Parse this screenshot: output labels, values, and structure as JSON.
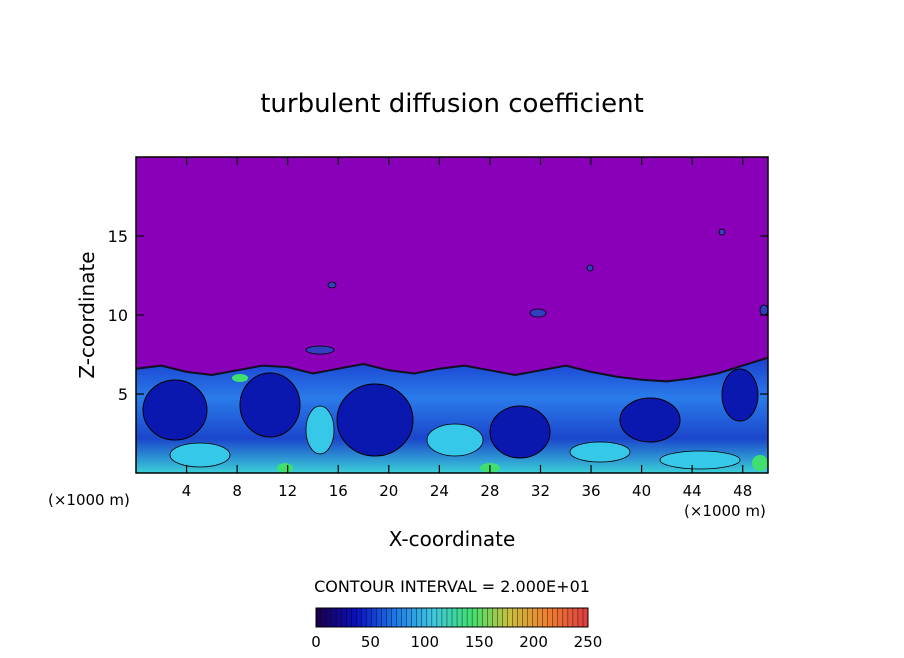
{
  "chart_data": {
    "type": "heatmap",
    "title": "turbulent diffusion coefficient",
    "xlabel": "X-coordinate",
    "ylabel": "Z-coordinate",
    "x_unit_label_left": "(×1000 m)",
    "x_unit_label_right": "(×1000 m)",
    "xlim": [
      0,
      50
    ],
    "ylim": [
      0,
      20
    ],
    "x_ticks": [
      4,
      8,
      12,
      16,
      20,
      24,
      28,
      32,
      36,
      40,
      44,
      48
    ],
    "y_ticks": [
      5,
      10,
      15
    ],
    "contour_interval_label": "CONTOUR INTERVAL = 2.000E+01",
    "colorbar": {
      "min": 0,
      "max": 250,
      "tick_values": [
        0,
        50,
        100,
        150,
        200,
        250
      ],
      "colors": [
        "#1a0050",
        "#0a10c0",
        "#1c78e8",
        "#40c8e0",
        "#40e070",
        "#c8c040",
        "#f08030",
        "#e04040"
      ]
    },
    "background_value_color": "#8a00b8",
    "boundary_layer_top_km": [
      6.6,
      6.8,
      6.4,
      6.2,
      6.5,
      6.8,
      6.7,
      6.3,
      6.6,
      6.9,
      6.5,
      6.3,
      6.6,
      6.8,
      6.5,
      6.2,
      6.5,
      6.8,
      6.4,
      6.1,
      5.9,
      5.8,
      6.0,
      6.3,
      6.8,
      7.3
    ]
  }
}
